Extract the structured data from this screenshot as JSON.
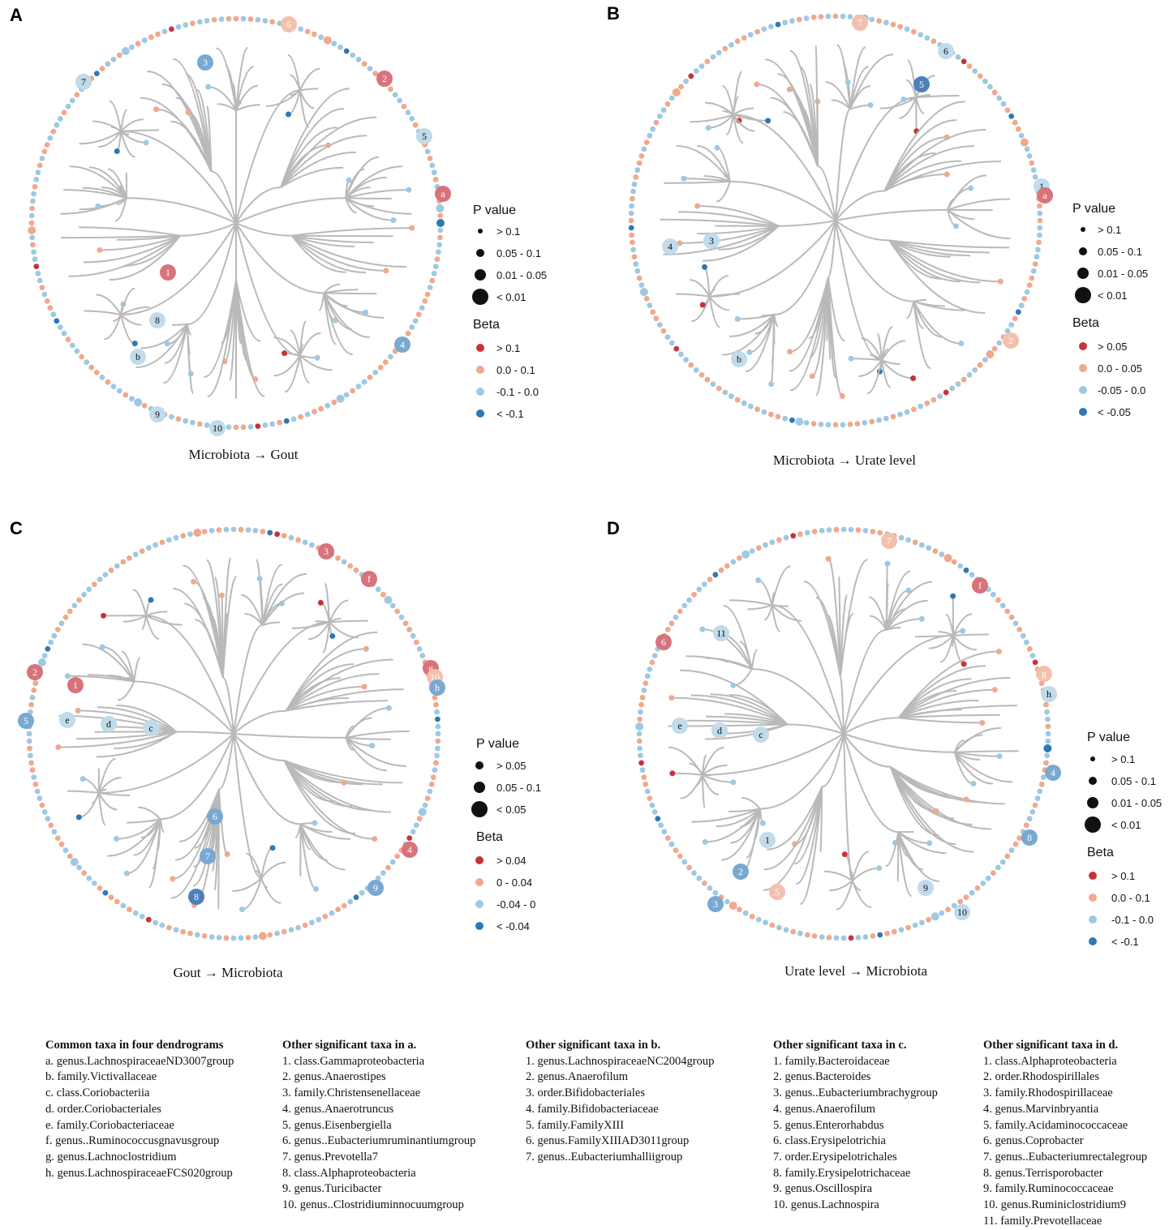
{
  "colors": {
    "beta_strong_pos": "#c8323a",
    "beta_pos": "#f0a98c",
    "beta_neg": "#9ec9e2",
    "beta_strong_neg": "#2f78b5",
    "branch": "#b9b9b9",
    "highlight_red": "#d8737b",
    "highlight_pale_red": "#f4c0ad",
    "highlight_blue": "#79a9d1",
    "highlight_pale_blue": "#c0dbea",
    "highlight_dark_blue": "#4f7fb8"
  },
  "panels": [
    {
      "letter": "A",
      "caption": "Microbiota → Gout",
      "legend": {
        "pvalue_title": "P value",
        "pvalue_items": [
          "> 0.1",
          "0.05 - 0.1",
          "0.01 - 0.05",
          "< 0.01"
        ],
        "beta_title": "Beta",
        "beta_items": [
          "> 0.1",
          "0.0 - 0.1",
          "-0.1 - 0.0",
          "< -0.1"
        ]
      },
      "markers": [
        {
          "label": "6",
          "color": "pale_red"
        },
        {
          "label": "3",
          "color": "blue"
        },
        {
          "label": "7",
          "color": "pale_blue"
        },
        {
          "label": "2",
          "color": "red"
        },
        {
          "label": "5",
          "color": "pale_blue"
        },
        {
          "label": "a",
          "color": "red"
        },
        {
          "label": "1",
          "color": "red"
        },
        {
          "label": "8",
          "color": "pale_blue"
        },
        {
          "label": "b",
          "color": "pale_blue"
        },
        {
          "label": "4",
          "color": "blue"
        },
        {
          "label": "9",
          "color": "pale_blue"
        },
        {
          "label": "10",
          "color": "pale_blue"
        }
      ]
    },
    {
      "letter": "B",
      "caption": "Microbiota → Urate level",
      "legend": {
        "pvalue_title": "P value",
        "pvalue_items": [
          "> 0.1",
          "0.05 - 0.1",
          "0.01 - 0.05",
          "< 0.01"
        ],
        "beta_title": "Beta",
        "beta_items": [
          "> 0.05",
          "0.0 - 0.05",
          "-0.05 - 0.0",
          "< -0.05"
        ]
      },
      "markers": [
        {
          "label": "7",
          "color": "pale_red"
        },
        {
          "label": "6",
          "color": "pale_blue"
        },
        {
          "label": "5",
          "color": "dark_blue"
        },
        {
          "label": "1",
          "color": "pale_blue"
        },
        {
          "label": "a",
          "color": "red"
        },
        {
          "label": "4",
          "color": "pale_blue"
        },
        {
          "label": "3",
          "color": "pale_blue"
        },
        {
          "label": "b",
          "color": "pale_blue"
        },
        {
          "label": "2",
          "color": "pale_red"
        }
      ]
    },
    {
      "letter": "C",
      "caption": "Gout → Microbiota",
      "legend": {
        "pvalue_title": "P value",
        "pvalue_items": [
          "> 0.05",
          "0.05 - 0.1",
          "< 0.05"
        ],
        "beta_title": "Beta",
        "beta_items": [
          "> 0.04",
          "0 - 0.04",
          "-0.04 - 0",
          "< -0.04"
        ]
      },
      "markers": [
        {
          "label": "3",
          "color": "red"
        },
        {
          "label": "f",
          "color": "red"
        },
        {
          "label": "2",
          "color": "red"
        },
        {
          "label": "1",
          "color": "red"
        },
        {
          "label": "g",
          "color": "red"
        },
        {
          "label": "10",
          "color": "pale_red"
        },
        {
          "label": "h",
          "color": "blue"
        },
        {
          "label": "5",
          "color": "blue"
        },
        {
          "label": "e",
          "color": "pale_blue"
        },
        {
          "label": "d",
          "color": "pale_blue"
        },
        {
          "label": "c",
          "color": "pale_blue"
        },
        {
          "label": "6",
          "color": "blue"
        },
        {
          "label": "7",
          "color": "blue"
        },
        {
          "label": "8",
          "color": "dark_blue"
        },
        {
          "label": "4",
          "color": "red"
        },
        {
          "label": "9",
          "color": "blue"
        }
      ]
    },
    {
      "letter": "D",
      "caption": "Urate level → Microbiota",
      "legend": {
        "pvalue_title": "P value",
        "pvalue_items": [
          "> 0.1",
          "0.05 - 0.1",
          "0.01 - 0.05",
          "< 0.01"
        ],
        "beta_title": "Beta",
        "beta_items": [
          "> 0.1",
          "0.0 - 0.1",
          "-0.1 - 0.0",
          "< -0.1"
        ]
      },
      "markers": [
        {
          "label": "7",
          "color": "pale_red"
        },
        {
          "label": "f",
          "color": "red"
        },
        {
          "label": "11",
          "color": "pale_blue"
        },
        {
          "label": "6",
          "color": "red"
        },
        {
          "label": "g",
          "color": "pale_red"
        },
        {
          "label": "h",
          "color": "pale_blue"
        },
        {
          "label": "e",
          "color": "pale_blue"
        },
        {
          "label": "d",
          "color": "pale_blue"
        },
        {
          "label": "c",
          "color": "pale_blue"
        },
        {
          "label": "4",
          "color": "blue"
        },
        {
          "label": "8",
          "color": "blue"
        },
        {
          "label": "1",
          "color": "pale_blue"
        },
        {
          "label": "2",
          "color": "blue"
        },
        {
          "label": "3",
          "color": "blue"
        },
        {
          "label": "5",
          "color": "pale_red"
        },
        {
          "label": "9",
          "color": "pale_blue"
        },
        {
          "label": "10",
          "color": "pale_blue"
        }
      ]
    }
  ],
  "taxa_lists": [
    {
      "title": "Common taxa in four dendrograms",
      "items": [
        "a. genus.LachnospiraceaeND3007group",
        "b. family.Victivallaceae",
        "c. class.Coriobacteriia",
        "d. order.Coriobacteriales",
        "e. family.Coriobacteriaceae",
        "f. genus..Ruminococcusgnavusgroup",
        "g. genus.Lachnoclostridium",
        "h. genus.LachnospiraceaeFCS020group"
      ]
    },
    {
      "title": "Other significant taxa in a.",
      "items": [
        "1. class.Gammaproteobacteria",
        "2. genus.Anaerostipes",
        "3. family.Christensenellaceae",
        "4. genus.Anaerotruncus",
        "5. genus.Eisenbergiella",
        "6. genus..Eubacteriumruminantiumgroup",
        "7. genus.Prevotella7",
        "8. class.Alphaproteobacteria",
        "9. genus.Turicibacter",
        "10. genus..Clostridiuminnocuumgroup"
      ]
    },
    {
      "title": "Other significant taxa in b.",
      "items": [
        "1. genus.LachnospiraceaeNC2004group",
        "2. genus.Anaerofilum",
        "3. order.Bifidobacteriales",
        "4. family.Bifidobacteriaceae",
        "5. family.FamilyXIII",
        "6. genus.FamilyXIIIAD3011group",
        "7. genus..Eubacteriumhalliigroup"
      ]
    },
    {
      "title": "Other significant taxa in c.",
      "items": [
        "1. family.Bacteroidaceae",
        "2. genus.Bacteroides",
        "3. genus..Eubacteriumbrachygroup",
        "4. genus.Anaerofilum",
        "5. genus.Enterorhabdus",
        "6. class.Erysipelotrichia",
        "7. order.Erysipelotrichales",
        "8. family.Erysipelotrichaceae",
        "9. genus.Oscillospira",
        "10. genus.Lachnospira"
      ]
    },
    {
      "title": "Other significant taxa in d.",
      "items": [
        "1. class.Alphaproteobacteria",
        "2. order.Rhodospirillales",
        "3. family.Rhodospirillaceae",
        "4. genus.Marvinbryantia",
        "5. family.Acidaminococcaceae",
        "6. genus.Coprobacter",
        "7. genus..Eubacteriumrectalegroup",
        "8. genus.Terrisporobacter",
        "9. family.Ruminococcaceae",
        "10. genus.Ruminiclostridium9",
        "11. family.Prevotellaceae"
      ]
    }
  ]
}
